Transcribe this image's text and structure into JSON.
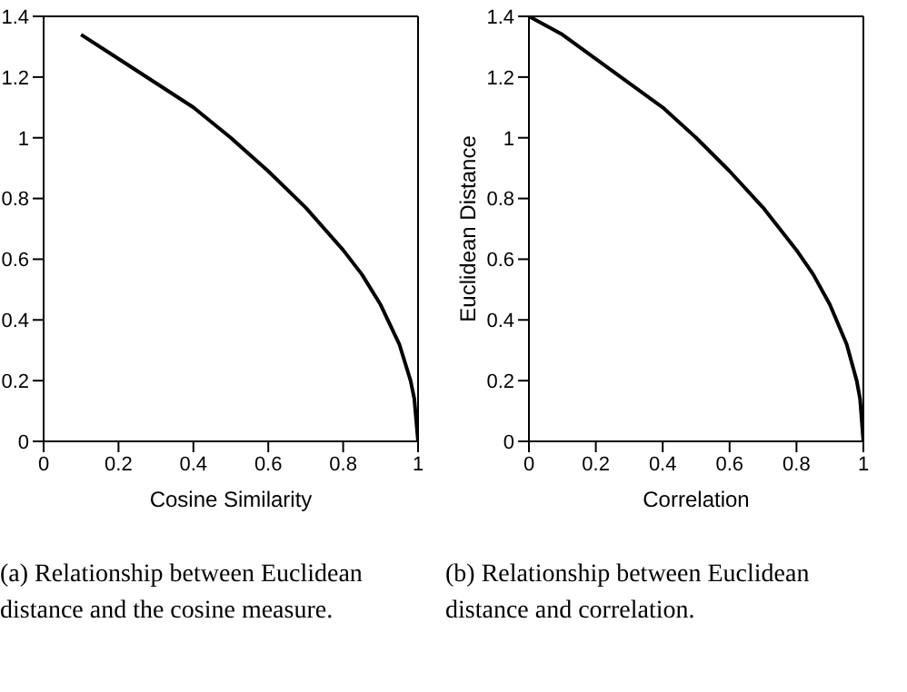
{
  "chart_data": [
    {
      "type": "line",
      "xlabel": "Cosine Similarity",
      "annotations": [
        "(a) Relationship between Euclidean distance and the cosine measure."
      ],
      "series": [
        {
          "color": "#000000",
          "x": [
            0.1,
            0.2,
            0.3,
            0.4,
            0.5,
            0.6,
            0.7,
            0.8,
            0.85,
            0.9,
            0.95,
            0.98,
            0.99,
            1
          ],
          "values": [
            1.34,
            1.26,
            1.18,
            1.1,
            1,
            0.89,
            0.77,
            0.63,
            0.55,
            0.45,
            0.32,
            0.2,
            0.14,
            0
          ]
        }
      ],
      "xlim": [
        0,
        1
      ],
      "ylim": [
        0,
        1.4
      ],
      "xticks": [
        0,
        0.2,
        0.4,
        0.6,
        0.8,
        1
      ],
      "yticks": [
        0,
        0.2,
        0.4,
        0.6,
        0.8,
        1,
        1.2,
        1.4
      ],
      "marker": "none",
      "line_style": "solid"
    },
    {
      "type": "line",
      "xlabel": "Correlation",
      "ylabel": "Euclidean Distance",
      "annotations": [
        "(b) Relationship between Euclidean distance and correlation."
      ],
      "series": [
        {
          "color": "#000000",
          "x": [
            0,
            0.1,
            0.2,
            0.3,
            0.4,
            0.5,
            0.6,
            0.7,
            0.8,
            0.85,
            0.9,
            0.95,
            0.98,
            0.99,
            1
          ],
          "values": [
            1.4,
            1.34,
            1.26,
            1.18,
            1.1,
            1,
            0.89,
            0.77,
            0.63,
            0.55,
            0.45,
            0.32,
            0.2,
            0.14,
            0
          ]
        }
      ],
      "xlim": [
        0,
        1
      ],
      "ylim": [
        0,
        1.4
      ],
      "xticks": [
        0,
        0.2,
        0.4,
        0.6,
        0.8,
        1
      ],
      "yticks": [
        0,
        0.2,
        0.4,
        0.6,
        0.8,
        1,
        1.2,
        1.4
      ],
      "marker": "none",
      "line_style": "solid"
    }
  ]
}
